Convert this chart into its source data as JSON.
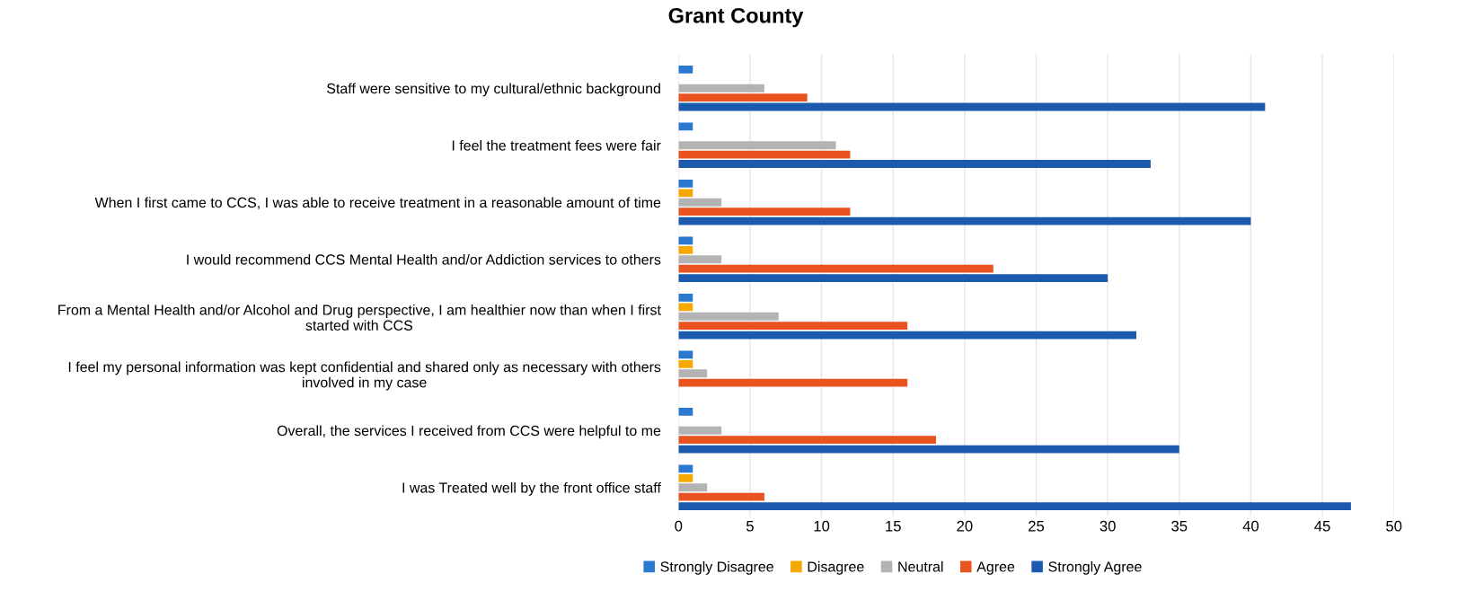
{
  "chart_data": {
    "type": "bar",
    "orientation": "horizontal",
    "title": "Grant County",
    "categories": [
      "Staff were sensitive to my cultural/ethnic background",
      "I feel the treatment fees were fair",
      "When I first came to CCS, I was able to receive treatment in a reasonable amount of time",
      "I would recommend CCS Mental Health and/or Addiction services to others",
      "From a Mental Health and/or Alcohol and Drug perspective, I am healthier now than when I first\nstarted with CCS",
      "I feel my personal information was kept confidential and shared only as necessary with others\ninvolved in my case",
      "Overall, the services I received from CCS were helpful to me",
      "I was Treated well by the front office staff"
    ],
    "series": [
      {
        "name": "Strongly Disagree",
        "color": "#2a78cf",
        "values": [
          1,
          1,
          1,
          1,
          1,
          1,
          1,
          1
        ]
      },
      {
        "name": "Disagree",
        "color": "#f5a800",
        "values": [
          0,
          0,
          1,
          1,
          1,
          1,
          0,
          1
        ]
      },
      {
        "name": "Neutral",
        "color": "#b3b3b3",
        "values": [
          6,
          11,
          3,
          3,
          7,
          2,
          3,
          2
        ]
      },
      {
        "name": "Agree",
        "color": "#e8531f",
        "values": [
          9,
          12,
          12,
          22,
          16,
          16,
          18,
          6
        ]
      },
      {
        "name": "Strongly Agree",
        "color": "#1c5aad",
        "values": [
          41,
          33,
          40,
          30,
          32,
          null,
          35,
          47
        ]
      }
    ],
    "xlim": [
      0,
      50
    ],
    "xticks": [
      0,
      5,
      10,
      15,
      20,
      25,
      30,
      35,
      40,
      45,
      50
    ],
    "grid": "x",
    "legend": "bottom"
  }
}
